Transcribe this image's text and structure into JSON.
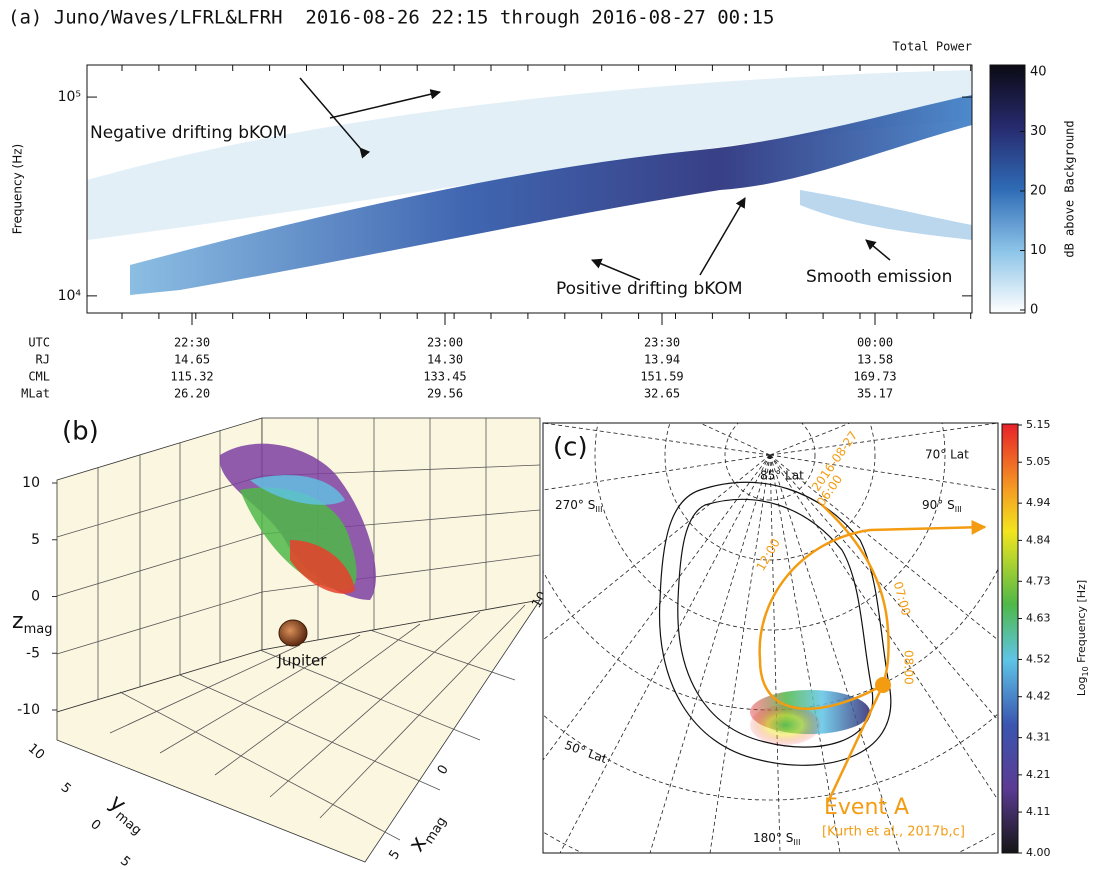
{
  "chart_data": [
    {
      "type": "spectrogram",
      "title": "(a) Juno/Waves/LFRL&LFRH  2016-08-26 22:15 through 2016-08-27 00:15",
      "subtitle": "Total Power",
      "ylabel": "Frequency (Hz)",
      "ylog": true,
      "ylim": [
        8200,
        145000
      ],
      "yticks": [
        {
          "value": 10000,
          "label": "10⁴"
        },
        {
          "value": 100000,
          "label": "10⁵"
        }
      ],
      "colorbar": {
        "label": "dB above Background",
        "lim": [
          0,
          40
        ],
        "ticks": [
          0,
          10,
          20,
          30,
          40
        ]
      },
      "annotations": [
        "Negative drifting bKOM",
        "Positive drifting bKOM",
        "Smooth emission"
      ],
      "ephemeris": {
        "rows": [
          "UTC",
          "RJ",
          "CML",
          "MLat"
        ],
        "columns": [
          [
            "22:30",
            "14.65",
            "115.32",
            "26.20"
          ],
          [
            "23:00",
            "14.30",
            "133.45",
            "29.56"
          ],
          [
            "23:30",
            "13.94",
            "151.59",
            "32.65"
          ],
          [
            "00:00",
            "13.58",
            "169.73",
            "35.17"
          ]
        ]
      }
    },
    {
      "type": "scatter3d",
      "label": "(b)",
      "zlabel": "z",
      "zlabel_sub": "mag",
      "ylabel": "y",
      "ylabel_sub": "mag",
      "xlabel": "x",
      "xlabel_sub": "mag",
      "zlim": [
        -10,
        10
      ],
      "zticks": [
        10,
        5,
        0,
        -5,
        -10
      ],
      "ylim": [
        -5,
        10
      ],
      "yticks": [
        10,
        5,
        0,
        {
          "value": -5,
          "label": "5"
        }
      ],
      "xlim": [
        -5,
        10
      ],
      "xticks": [
        10,
        0,
        {
          "value": -5,
          "label": "5"
        }
      ],
      "annotation": "Jupiter"
    },
    {
      "type": "polar_map",
      "label": "(c)",
      "grid_labels": [
        {
          "text": "85° Lat"
        },
        {
          "text": "70° Lat"
        },
        {
          "text": "50° Lat"
        },
        {
          "text": "270° S",
          "sub": "III"
        },
        {
          "text": "90° S",
          "sub": "III"
        },
        {
          "text": "180° S",
          "sub": "III"
        }
      ],
      "track_labels": [
        "2016-08-27",
        "06:00",
        "07:00",
        "08:00",
        "12:00"
      ],
      "annotations": [
        "Event A",
        "[Kurth et al., 2017b,c]"
      ],
      "colorbar": {
        "label": "Log",
        "label_sub": "10",
        "label_rest": " Frequency [Hz]",
        "lim": [
          4.0,
          5.15
        ],
        "ticks": [
          5.15,
          5.05,
          4.94,
          4.84,
          4.73,
          4.63,
          4.52,
          4.42,
          4.31,
          4.21,
          4.11,
          {
            "value": 4.0,
            "label": "4.00"
          }
        ]
      }
    }
  ]
}
